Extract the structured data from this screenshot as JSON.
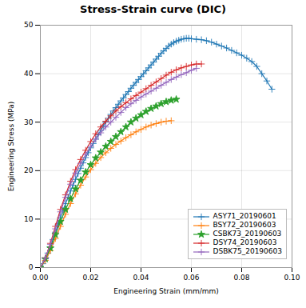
{
  "chart_data": {
    "type": "line",
    "title": "Stress-Strain curve (DIC)",
    "xlabel": "Engineering Strain (mm/mm)",
    "ylabel": "Engineering Stress (MPa)",
    "xlim": [
      0.0,
      0.1
    ],
    "ylim": [
      0,
      50
    ],
    "xticks": [
      {
        "value": 0,
        "label": "0.00"
      },
      0.02,
      0.04,
      0.06,
      0.08,
      {
        "value": 0.1,
        "label": "0.10"
      }
    ],
    "yticks": [
      0,
      10,
      20,
      30,
      40,
      50
    ],
    "grid": true,
    "legend": "lower right",
    "series": [
      {
        "name": "ASY71_20190601",
        "color": "#1f77b4",
        "marker": "+",
        "x": [
          0.0,
          0.001,
          0.002,
          0.003,
          0.004,
          0.005,
          0.006,
          0.007,
          0.008,
          0.009,
          0.01,
          0.011,
          0.012,
          0.013,
          0.014,
          0.015,
          0.016,
          0.017,
          0.018,
          0.019,
          0.02,
          0.021,
          0.022,
          0.023,
          0.024,
          0.025,
          0.026,
          0.027,
          0.028,
          0.029,
          0.03,
          0.031,
          0.032,
          0.033,
          0.034,
          0.035,
          0.036,
          0.037,
          0.038,
          0.039,
          0.04,
          0.041,
          0.042,
          0.043,
          0.044,
          0.045,
          0.046,
          0.047,
          0.048,
          0.049,
          0.05,
          0.051,
          0.052,
          0.053,
          0.054,
          0.055,
          0.056,
          0.057,
          0.058,
          0.059,
          0.06,
          0.062,
          0.064,
          0.066,
          0.068,
          0.07,
          0.072,
          0.074,
          0.076,
          0.078,
          0.08,
          0.082,
          0.084,
          0.086,
          0.088,
          0.09,
          0.092
        ],
        "values": [
          0.0,
          0.8,
          1.8,
          3.0,
          4.3,
          5.8,
          7.3,
          8.8,
          10.3,
          11.8,
          13.2,
          14.5,
          15.8,
          17.0,
          18.2,
          19.4,
          20.5,
          21.6,
          22.7,
          23.7,
          24.7,
          25.6,
          26.5,
          27.4,
          28.3,
          29.2,
          30.0,
          30.8,
          31.6,
          32.3,
          33.0,
          33.7,
          34.4,
          35.0,
          35.7,
          36.3,
          37.0,
          37.6,
          38.2,
          38.8,
          39.4,
          40.0,
          40.6,
          41.2,
          41.8,
          42.4,
          43.0,
          43.6,
          44.2,
          44.7,
          45.2,
          45.7,
          46.1,
          46.4,
          46.7,
          46.9,
          47.1,
          47.2,
          47.3,
          47.3,
          47.2,
          47.1,
          47.0,
          46.8,
          46.5,
          46.1,
          45.7,
          45.3,
          44.8,
          44.3,
          43.8,
          43.2,
          42.5,
          41.5,
          40.0,
          38.5,
          36.8
        ]
      },
      {
        "name": "BSY72_20190603",
        "color": "#ff7f0e",
        "marker": "+",
        "x": [
          0.0,
          0.002,
          0.004,
          0.006,
          0.008,
          0.01,
          0.012,
          0.014,
          0.016,
          0.018,
          0.02,
          0.022,
          0.024,
          0.026,
          0.028,
          0.03,
          0.032,
          0.034,
          0.036,
          0.038,
          0.04,
          0.042,
          0.044,
          0.046,
          0.048,
          0.05,
          0.052
        ],
        "values": [
          0.0,
          1.5,
          3.5,
          6.0,
          8.5,
          11.0,
          13.2,
          15.2,
          17.0,
          18.7,
          20.2,
          21.5,
          22.7,
          23.7,
          24.6,
          25.4,
          26.1,
          26.8,
          27.4,
          28.0,
          28.5,
          29.0,
          29.4,
          29.7,
          30.0,
          30.2,
          30.3
        ]
      },
      {
        "name": "CSBK73_20190603",
        "color": "#2ca02c",
        "marker": "*",
        "x": [
          0.0,
          0.002,
          0.004,
          0.006,
          0.008,
          0.01,
          0.012,
          0.014,
          0.016,
          0.018,
          0.02,
          0.022,
          0.024,
          0.026,
          0.028,
          0.03,
          0.032,
          0.034,
          0.036,
          0.038,
          0.04,
          0.042,
          0.044,
          0.046,
          0.048,
          0.05,
          0.052,
          0.054
        ],
        "values": [
          0.0,
          1.8,
          4.0,
          6.8,
          9.5,
          12.0,
          14.2,
          16.2,
          18.0,
          19.7,
          21.2,
          22.6,
          23.8,
          25.0,
          26.0,
          27.0,
          28.0,
          29.0,
          30.0,
          30.8,
          31.5,
          32.2,
          32.8,
          33.3,
          33.8,
          34.2,
          34.5,
          34.7
        ]
      },
      {
        "name": "DSY74_20190603",
        "color": "#d62728",
        "marker": "+",
        "x": [
          0.0,
          0.002,
          0.004,
          0.006,
          0.008,
          0.01,
          0.012,
          0.014,
          0.016,
          0.018,
          0.02,
          0.022,
          0.024,
          0.026,
          0.028,
          0.03,
          0.032,
          0.034,
          0.036,
          0.038,
          0.04,
          0.042,
          0.044,
          0.046,
          0.048,
          0.05,
          0.052,
          0.054,
          0.056,
          0.058,
          0.06,
          0.062,
          0.064
        ],
        "values": [
          0.0,
          2.0,
          5.0,
          8.5,
          12.0,
          15.0,
          17.8,
          20.2,
          22.3,
          24.2,
          26.0,
          27.6,
          29.0,
          30.2,
          31.3,
          32.3,
          33.2,
          34.0,
          34.8,
          35.5,
          36.2,
          36.9,
          37.6,
          38.3,
          39.0,
          39.7,
          40.3,
          40.8,
          41.2,
          41.5,
          41.8,
          42.0,
          42.0
        ]
      },
      {
        "name": "DSBK75_20190603",
        "color": "#9467bd",
        "marker": "+",
        "x": [
          0.0,
          0.002,
          0.004,
          0.006,
          0.008,
          0.01,
          0.012,
          0.014,
          0.016,
          0.018,
          0.02,
          0.022,
          0.024,
          0.026,
          0.028,
          0.03,
          0.032,
          0.034,
          0.036,
          0.038,
          0.04,
          0.042,
          0.044,
          0.046,
          0.048,
          0.05,
          0.052,
          0.054,
          0.056,
          0.058,
          0.06,
          0.062
        ],
        "values": [
          0.0,
          2.0,
          4.8,
          8.0,
          11.5,
          14.5,
          17.2,
          19.5,
          21.5,
          23.3,
          25.0,
          26.5,
          27.8,
          29.0,
          30.0,
          31.0,
          32.0,
          33.0,
          33.8,
          34.5,
          35.2,
          35.8,
          36.4,
          37.0,
          37.6,
          38.2,
          38.8,
          39.3,
          39.8,
          40.2,
          40.7,
          41.1
        ]
      }
    ]
  }
}
